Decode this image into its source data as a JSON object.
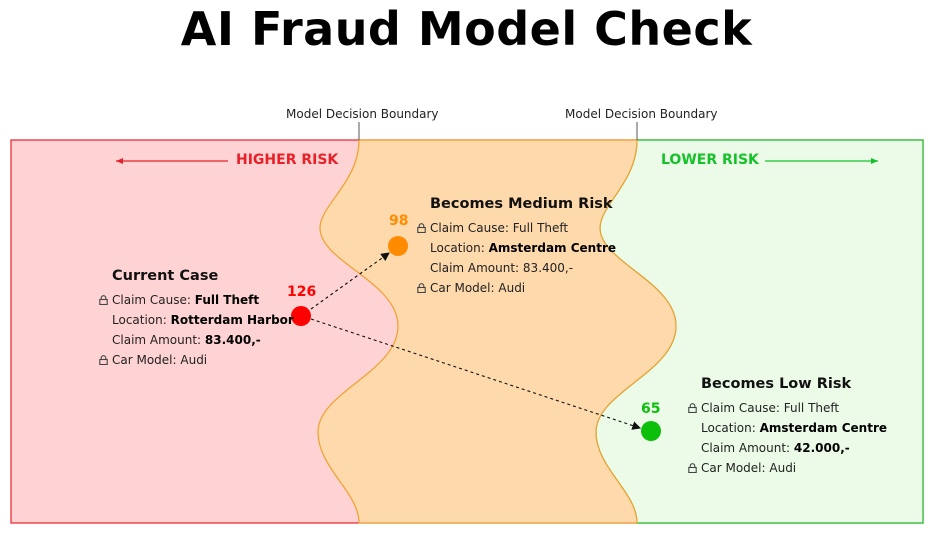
{
  "title": "AI Fraud Model Check",
  "boundary_labels": [
    "Model Decision Boundary",
    "Model Decision Boundary"
  ],
  "zones": {
    "higher": {
      "label": "HIGHER RISK",
      "color": "#e8202a",
      "fill": "#ffd3d3"
    },
    "medium": {
      "fill": "#fdd9ac",
      "stroke": "#f0a030"
    },
    "lower": {
      "label": "LOWER RISK",
      "color": "#16c22a",
      "fill": "#ebfbe8"
    }
  },
  "points": [
    {
      "id": "current",
      "score": "126",
      "color": "#ff0000"
    },
    {
      "id": "medium",
      "score": "98",
      "color": "#ff8c00"
    },
    {
      "id": "low",
      "score": "65",
      "color": "#0bbf0b"
    }
  ],
  "cases": {
    "current": {
      "title": "Current Case",
      "rows": [
        {
          "label": "Claim Cause: ",
          "value": "Full Theft",
          "bold": true,
          "locked": true
        },
        {
          "label": "Location: ",
          "value": "Rotterdam Harbor",
          "bold": true,
          "locked": false
        },
        {
          "label": "Claim Amount: ",
          "value": "83.400,-",
          "bold": true,
          "locked": false
        },
        {
          "label": "Car Model: ",
          "value": "Audi",
          "bold": false,
          "locked": true
        }
      ]
    },
    "medium": {
      "title": "Becomes Medium Risk",
      "rows": [
        {
          "label": "Claim Cause: ",
          "value": "Full Theft",
          "bold": false,
          "locked": true
        },
        {
          "label": "Location: ",
          "value": "Amsterdam Centre",
          "bold": true,
          "locked": false
        },
        {
          "label": "Claim Amount: ",
          "value": "83.400,-",
          "bold": false,
          "locked": false
        },
        {
          "label": "Car Model: ",
          "value": "Audi",
          "bold": false,
          "locked": true
        }
      ]
    },
    "low": {
      "title": "Becomes Low Risk",
      "rows": [
        {
          "label": "Claim Cause: ",
          "value": "Full Theft",
          "bold": false,
          "locked": true
        },
        {
          "label": "Location: ",
          "value": "Amsterdam Centre",
          "bold": true,
          "locked": false
        },
        {
          "label": "Claim Amount: ",
          "value": "42.000,-",
          "bold": true,
          "locked": false
        },
        {
          "label": "Car Model: ",
          "value": "Audi",
          "bold": false,
          "locked": true
        }
      ]
    }
  }
}
